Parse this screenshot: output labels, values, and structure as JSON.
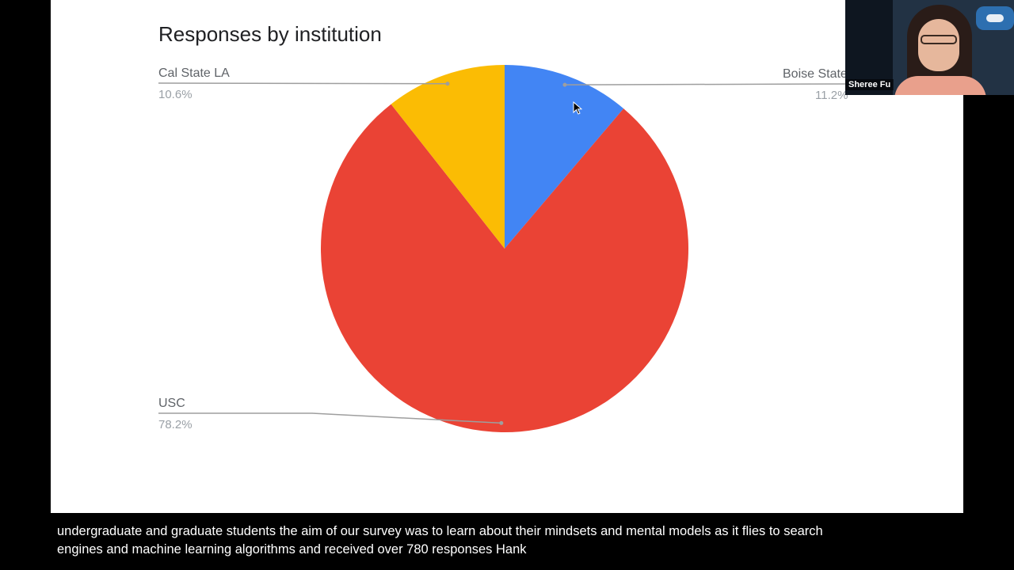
{
  "chart_data": {
    "type": "pie",
    "title": "Responses by institution",
    "slices": [
      {
        "label": "Boise State",
        "value": 11.2,
        "value_label": "11.2%",
        "color": "#4285f4"
      },
      {
        "label": "USC",
        "value": 78.2,
        "value_label": "78.2%",
        "color": "#ea4335"
      },
      {
        "label": "Cal State LA",
        "value": 10.6,
        "value_label": "10.6%",
        "color": "#fbbc04"
      }
    ],
    "legend": "callout labels",
    "start_angle_deg": 0,
    "direction": "clockwise"
  },
  "webcam": {
    "name": "Sheree Fu"
  },
  "caption": {
    "line1": "undergraduate and graduate students the aim of our survey was to learn about their mindsets and mental models as it flies to search",
    "line2": "engines and machine learning algorithms and received over 780 responses Hank"
  }
}
